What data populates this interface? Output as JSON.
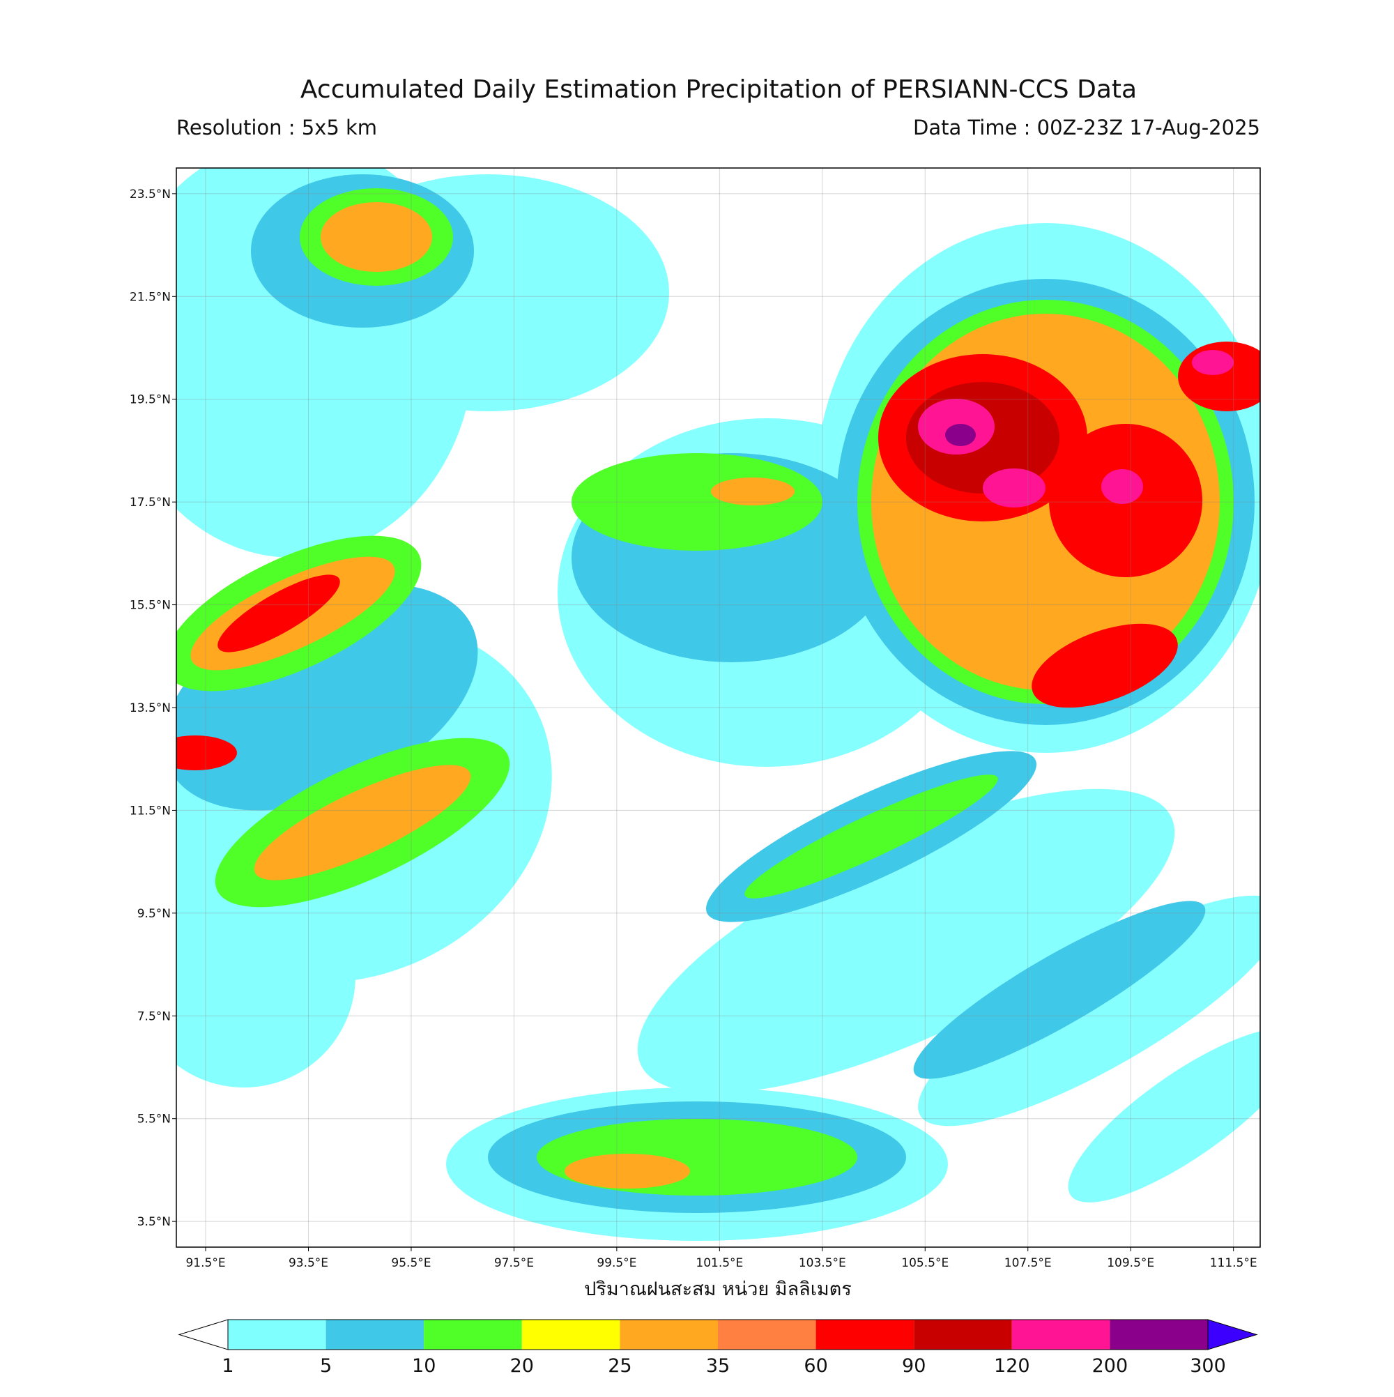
{
  "header": {
    "title": "Accumulated Daily Estimation Precipitation of PERSIANN-CCS Data",
    "resolution": "Resolution : 5x5 km",
    "data_time": "Data Time : 00Z-23Z 17-Aug-2025"
  },
  "map": {
    "lonlim": [
      90.93,
      112.02
    ],
    "latlim": [
      3.0,
      24.0
    ],
    "xticks": [
      {
        "value": 91.5,
        "label": "91.5°E"
      },
      {
        "value": 93.5,
        "label": "93.5°E"
      },
      {
        "value": 95.5,
        "label": "95.5°E"
      },
      {
        "value": 97.5,
        "label": "97.5°E"
      },
      {
        "value": 99.5,
        "label": "99.5°E"
      },
      {
        "value": 101.5,
        "label": "101.5°E"
      },
      {
        "value": 103.5,
        "label": "103.5°E"
      },
      {
        "value": 105.5,
        "label": "105.5°E"
      },
      {
        "value": 107.5,
        "label": "107.5°E"
      },
      {
        "value": 109.5,
        "label": "109.5°E"
      },
      {
        "value": 111.5,
        "label": "111.5°E"
      }
    ],
    "yticks": [
      {
        "value": 23.5,
        "label": "23.5°N"
      },
      {
        "value": 21.5,
        "label": "21.5°N"
      },
      {
        "value": 19.5,
        "label": "19.5°N"
      },
      {
        "value": 17.5,
        "label": "17.5°N"
      },
      {
        "value": 15.5,
        "label": "15.5°N"
      },
      {
        "value": 13.5,
        "label": "13.5°N"
      },
      {
        "value": 11.5,
        "label": "11.5°N"
      },
      {
        "value": 9.5,
        "label": "9.5°N"
      },
      {
        "value": 7.5,
        "label": "7.5°N"
      },
      {
        "value": 5.5,
        "label": "5.5°N"
      },
      {
        "value": 3.5,
        "label": "3.5°N"
      }
    ],
    "grid": true
  },
  "colorbar": {
    "label": "ปริมาณฝนสะสม หน่วย มิลลิเมตร",
    "boundaries": [
      1,
      5,
      10,
      20,
      25,
      35,
      60,
      90,
      120,
      200,
      300
    ],
    "colors": [
      "#80ffff",
      "#40c8e8",
      "#50ff28",
      "#ffff00",
      "#ffa820",
      "#ff8040",
      "#ff0000",
      "#c80000",
      "#ff1493",
      "#8b008b"
    ],
    "under_color": "#ffffff",
    "over_color": "#3c00ff"
  }
}
